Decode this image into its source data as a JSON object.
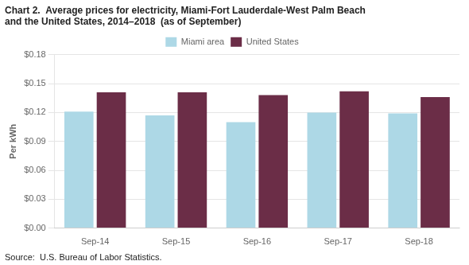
{
  "chart_data": {
    "type": "bar",
    "title": [
      "Chart 2.  Average prices for electricity, Miami-Fort Lauderdale-West Palm Beach",
      "and the United States, 2014–2018  (as of September)"
    ],
    "ylabel": "Per kWh",
    "annotations": [
      "Source:  U.S. Bureau of Labor Statistics."
    ],
    "categories": [
      "Sep-14",
      "Sep-15",
      "Sep-16",
      "Sep-17",
      "Sep-18"
    ],
    "series": [
      {
        "name": "Miami area",
        "color": "#ADD8E6",
        "values": [
          0.121,
          0.117,
          0.11,
          0.12,
          0.119
        ]
      },
      {
        "name": "United States",
        "color": "#6B2D47",
        "values": [
          0.141,
          0.141,
          0.138,
          0.142,
          0.136
        ]
      }
    ],
    "ylim": [
      0.0,
      0.18
    ],
    "yticks": [
      {
        "value": 0.0,
        "label": "$0.00"
      },
      {
        "value": 0.03,
        "label": "$0.03"
      },
      {
        "value": 0.06,
        "label": "$0.06"
      },
      {
        "value": 0.09,
        "label": "$0.09"
      },
      {
        "value": 0.12,
        "label": "$0.12"
      },
      {
        "value": 0.15,
        "label": "$0.15"
      },
      {
        "value": 0.18,
        "label": "$0.18"
      }
    ],
    "grid": true,
    "legend": "top"
  }
}
